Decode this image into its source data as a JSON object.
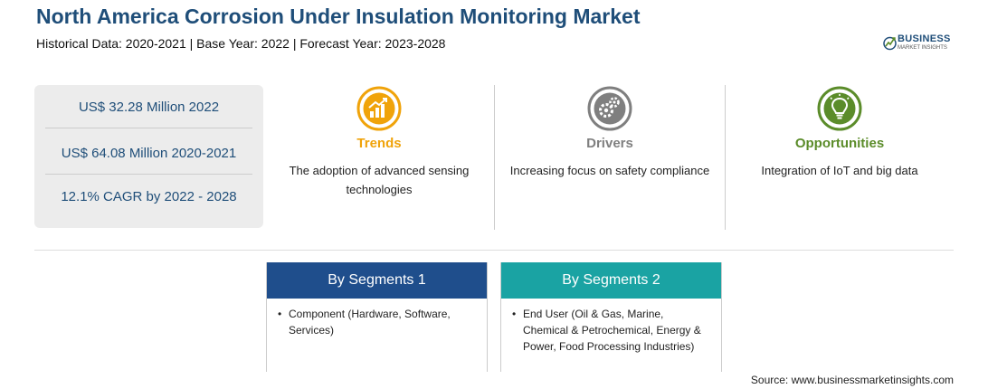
{
  "header": {
    "title": "North America Corrosion Under Insulation Monitoring Market",
    "subtitle": "Historical Data: 2020-2021 | Base Year: 2022 | Forecast Year: 2023-2028"
  },
  "logo": {
    "main": "BUSINESS",
    "sub": "MARKET INSIGHTS"
  },
  "stats": [
    "US$ 32.28 Million 2022",
    "US$ 64.08 Million 2020-2021",
    "12.1% CAGR by 2022 - 2028"
  ],
  "columns": [
    {
      "heading": "Trends",
      "text": "The adoption of advanced sensing technologies",
      "color": "#f0a30a",
      "icon": "growth-chart-icon"
    },
    {
      "heading": "Drivers",
      "text": "Increasing focus on safety compliance",
      "color": "#7f7f7f",
      "icon": "gears-icon"
    },
    {
      "heading": "Opportunities",
      "text": "Integration of IoT and big data",
      "color": "#5b8c2a",
      "icon": "lightbulb-icon"
    }
  ],
  "segments": [
    {
      "heading": "By Segments 1",
      "items": [
        "Component (Hardware, Software, Services)"
      ],
      "color": "#1f4e8c"
    },
    {
      "heading": "By Segments 2",
      "items": [
        "End User (Oil & Gas, Marine, Chemical & Petrochemical, Energy & Power, Food Processing Industries)"
      ],
      "color": "#1aa3a3"
    }
  ],
  "source": "Source: www.businessmarketinsights.com"
}
